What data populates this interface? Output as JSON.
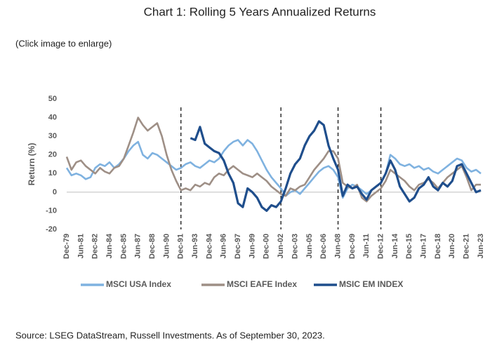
{
  "chart_data": {
    "type": "line",
    "title": "Chart 1: Rolling 5 Years Annualized Returns",
    "note": "(Click image to enlarge)",
    "source": "Source: LSEG DataStream, Russell Investments. As of September 30, 2023.",
    "ylabel": "Return (%)",
    "categories": [
      "Dec-79",
      null,
      null,
      "Jun-81",
      null,
      null,
      "Dec-82",
      null,
      null,
      "Jun-84",
      null,
      null,
      "Dec-85",
      null,
      null,
      "Jun-87",
      null,
      null,
      "Dec-88",
      null,
      null,
      "Jun-90",
      null,
      null,
      "Dec-91",
      null,
      null,
      "Jun-93",
      null,
      null,
      "Dec-94",
      null,
      null,
      "Jun-96",
      null,
      null,
      "Dec-97",
      null,
      null,
      "Jun-99",
      null,
      null,
      "Dec-00",
      null,
      null,
      "Jun-02",
      null,
      null,
      "Dec-03",
      null,
      null,
      "Jun-05",
      null,
      null,
      "Dec-06",
      null,
      null,
      "Jun-08",
      null,
      null,
      "Dec-09",
      null,
      null,
      "Jun-11",
      null,
      null,
      "Dec-12",
      null,
      null,
      "Jun-14",
      null,
      null,
      "Dec-15",
      null,
      null,
      "Jun-17",
      null,
      null,
      "Dec-18",
      null,
      null,
      "Jun-20",
      null,
      null,
      "Dec-21",
      null,
      null,
      "Jun-23"
    ],
    "series": [
      {
        "name": "MSCI USA Index",
        "color": "#7fb2e0",
        "values": [
          13,
          9,
          10,
          9,
          7,
          8,
          13,
          15,
          14,
          16,
          13,
          15,
          18,
          22,
          25,
          27,
          20,
          18,
          21,
          20,
          18,
          16,
          14,
          12,
          13,
          15,
          16,
          14,
          13,
          15,
          17,
          16,
          18,
          22,
          25,
          27,
          28,
          25,
          28,
          26,
          22,
          17,
          12,
          8,
          5,
          2,
          -2,
          0,
          1,
          -1,
          2,
          5,
          8,
          11,
          13,
          14,
          12,
          8,
          -3,
          2,
          4,
          3,
          1,
          -1,
          1,
          3,
          5,
          10,
          20,
          18,
          15,
          14,
          15,
          13,
          14,
          12,
          13,
          11,
          10,
          12,
          14,
          16,
          18,
          17,
          13,
          11,
          12,
          10
        ]
      },
      {
        "name": "MSCI EAFE Index",
        "color": "#9e8f86",
        "values": [
          19,
          12,
          16,
          17,
          14,
          12,
          10,
          13,
          11,
          10,
          13,
          14,
          18,
          25,
          32,
          40,
          36,
          33,
          35,
          37,
          30,
          20,
          12,
          6,
          1,
          2,
          1,
          4,
          3,
          5,
          4,
          8,
          10,
          9,
          12,
          14,
          12,
          10,
          9,
          8,
          10,
          8,
          6,
          3,
          1,
          -1,
          -2,
          2,
          1,
          3,
          4,
          8,
          12,
          15,
          18,
          22,
          22,
          18,
          5,
          3,
          2,
          4,
          -3,
          -5,
          -2,
          0,
          2,
          6,
          12,
          10,
          8,
          6,
          3,
          1,
          4,
          5,
          7,
          5,
          2,
          5,
          8,
          10,
          12,
          14,
          8,
          1,
          4,
          4
        ]
      },
      {
        "name": "MSIC EM INDEX",
        "color": "#1f4e8c",
        "values": [
          null,
          null,
          null,
          null,
          null,
          null,
          null,
          null,
          null,
          null,
          null,
          null,
          null,
          null,
          null,
          null,
          null,
          null,
          null,
          null,
          null,
          null,
          null,
          null,
          null,
          null,
          29,
          28,
          35,
          26,
          24,
          22,
          21,
          17,
          10,
          5,
          -6,
          -8,
          2,
          0,
          -3,
          -8,
          -10,
          -7,
          -8,
          -5,
          2,
          10,
          15,
          18,
          25,
          30,
          33,
          38,
          36,
          25,
          18,
          12,
          -2,
          4,
          2,
          3,
          -1,
          -4,
          1,
          3,
          5,
          10,
          17,
          12,
          3,
          -1,
          -5,
          -3,
          2,
          4,
          8,
          3,
          1,
          5,
          3,
          6,
          14,
          15,
          10,
          5,
          0,
          1
        ]
      }
    ],
    "vlines": [
      "Dec-91",
      "Jun-02",
      "Jun-08",
      "Dec-12"
    ],
    "ylim": [
      -20,
      50
    ],
    "yticks": [
      -20,
      -10,
      0,
      10,
      20,
      30,
      40,
      50
    ],
    "grid": false,
    "legend": "bottom"
  }
}
